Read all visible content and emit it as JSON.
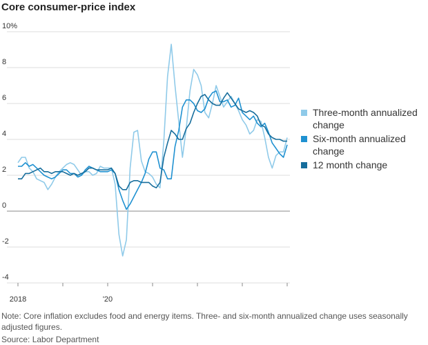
{
  "chart_data": {
    "type": "line",
    "title": "Core consumer-price index",
    "categories": [
      "2018",
      null,
      null,
      null,
      null,
      null,
      null,
      null,
      null,
      null,
      null,
      null,
      null,
      null,
      null,
      null,
      null,
      null,
      null,
      null,
      null,
      null,
      null,
      null,
      "'20",
      null,
      null,
      null,
      null,
      null,
      null,
      null,
      null,
      null,
      null,
      null,
      null,
      null,
      null,
      null,
      null,
      null,
      null,
      null,
      null,
      null,
      null,
      null,
      null,
      null,
      null,
      null,
      null,
      null,
      null,
      null,
      null,
      null,
      null,
      null,
      null,
      null,
      null,
      null,
      null,
      null,
      null,
      null,
      null,
      null,
      null,
      null,
      null
    ],
    "series": [
      {
        "name": "Three-month annualized change",
        "color": "#8fcae9",
        "values": [
          2.7,
          3.0,
          3.0,
          2.4,
          2.2,
          1.8,
          1.7,
          1.6,
          1.2,
          1.5,
          1.9,
          2.2,
          2.4,
          2.6,
          2.7,
          2.6,
          2.3,
          2.0,
          2.2,
          2.2,
          2.0,
          2.1,
          2.5,
          2.4,
          2.4,
          2.4,
          1.5,
          -1.3,
          -2.5,
          -1.6,
          2.4,
          4.4,
          4.5,
          2.8,
          2.2,
          2.1,
          1.9,
          1.5,
          1.3,
          3.9,
          7.5,
          9.3,
          7.0,
          5.0,
          3.0,
          4.6,
          6.7,
          7.9,
          7.6,
          7.0,
          5.5,
          5.2,
          6.0,
          7.0,
          6.4,
          5.8,
          6.1,
          6.4,
          6.0,
          5.6,
          5.1,
          4.8,
          4.3,
          4.5,
          5.1,
          5.0,
          4.1,
          3.0,
          2.4,
          3.1,
          3.3,
          3.3,
          4.1
        ]
      },
      {
        "name": "Six-month annualized change",
        "color": "#1f91d1",
        "values": [
          2.5,
          2.5,
          2.7,
          2.5,
          2.6,
          2.4,
          2.2,
          2.0,
          1.9,
          1.8,
          1.9,
          2.1,
          2.3,
          2.3,
          2.1,
          2.1,
          1.9,
          2.0,
          2.3,
          2.5,
          2.4,
          2.3,
          2.2,
          2.2,
          2.2,
          2.3,
          2.1,
          1.2,
          0.6,
          0.1,
          0.4,
          0.8,
          1.2,
          1.6,
          2.1,
          2.9,
          3.3,
          3.3,
          2.4,
          2.3,
          1.8,
          1.8,
          3.6,
          4.5,
          5.8,
          6.2,
          6.2,
          6.0,
          5.6,
          5.5,
          5.7,
          6.3,
          6.6,
          6.7,
          6.1,
          6.1,
          6.2,
          5.8,
          5.9,
          6.3,
          5.5,
          5.3,
          5.1,
          5.3,
          4.9,
          4.7,
          4.9,
          4.4,
          3.8,
          3.5,
          3.2,
          3.0,
          3.7
        ]
      },
      {
        "name": "12 month change",
        "color": "#166d9c",
        "values": [
          1.8,
          1.8,
          2.1,
          2.1,
          2.2,
          2.3,
          2.4,
          2.2,
          2.2,
          2.1,
          2.2,
          2.2,
          2.2,
          2.1,
          2.0,
          2.1,
          2.0,
          2.1,
          2.2,
          2.4,
          2.4,
          2.3,
          2.3,
          2.3,
          2.3,
          2.4,
          2.1,
          1.4,
          1.2,
          1.2,
          1.6,
          1.7,
          1.7,
          1.6,
          1.6,
          1.6,
          1.4,
          1.3,
          1.6,
          3.0,
          3.8,
          4.5,
          4.3,
          4.0,
          4.0,
          4.6,
          4.9,
          5.5,
          6.0,
          6.4,
          6.5,
          6.2,
          6.0,
          5.9,
          5.9,
          6.3,
          6.6,
          6.3,
          6.0,
          5.7,
          5.6,
          5.5,
          5.6,
          5.5,
          5.3,
          4.8,
          4.7,
          4.3,
          4.1,
          4.0,
          4.0,
          3.9,
          3.9
        ]
      }
    ],
    "ylim": [
      -4,
      10
    ],
    "yticks": [
      -4,
      -2,
      0,
      2,
      4,
      6,
      8,
      {
        "value": 10,
        "label": "10%"
      }
    ],
    "grid": true,
    "note": "Note: Core inflation excludes food and energy items. Three- and six-month annualized change uses seasonally adjusted figures.",
    "source": "Source: Labor Department"
  }
}
